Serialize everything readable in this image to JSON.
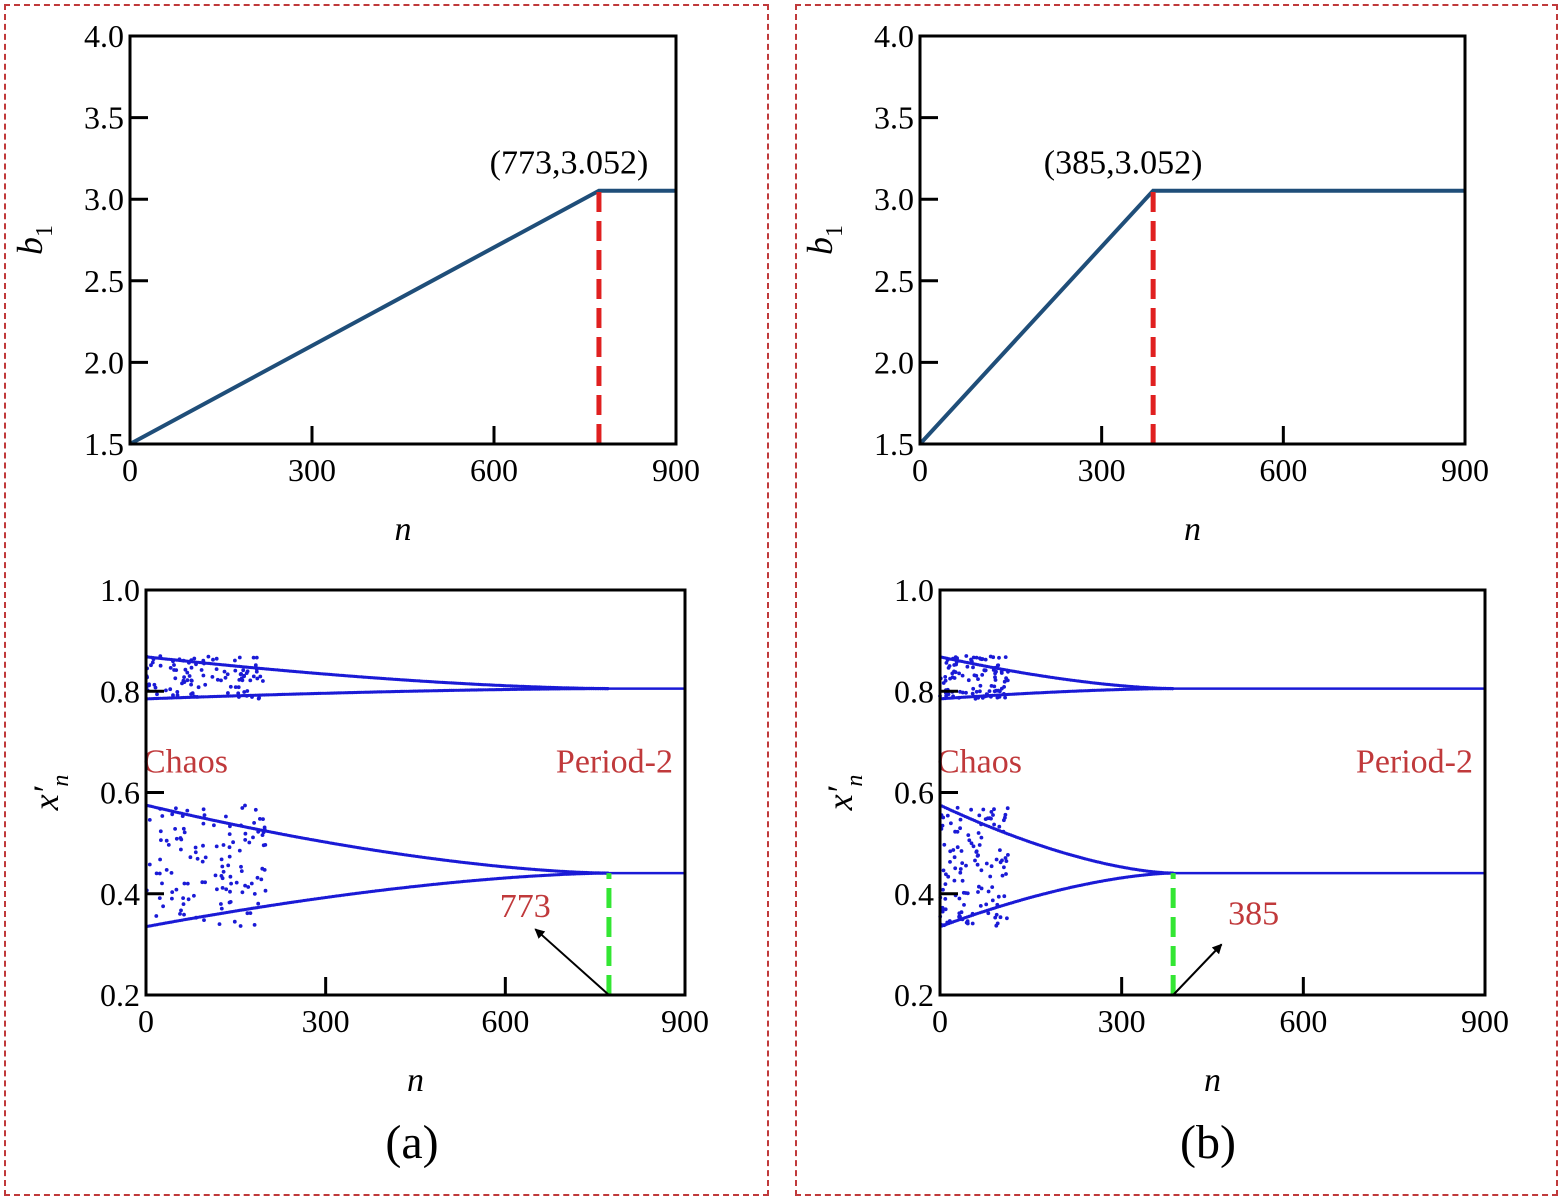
{
  "colors": {
    "line": "#1f4e79",
    "dots": "#1a1ad6",
    "red": "#e02020",
    "green": "#33e633",
    "label_red": "#c0393b",
    "frame": "#c0393b"
  },
  "chart_data": [
    {
      "id": "a-top",
      "type": "line",
      "panel": "(a)",
      "xlabel": "n",
      "ylabel": "b",
      "ylabel_sub": "1",
      "xlim": [
        0,
        900
      ],
      "ylim": [
        1.5,
        4.0
      ],
      "xticks": [
        "0",
        "300",
        "600",
        "900"
      ],
      "yticks": [
        "1.5",
        "2.0",
        "2.5",
        "3.0",
        "3.5",
        "4.0"
      ],
      "series": [
        {
          "name": "b1",
          "x": [
            0,
            773,
            900
          ],
          "y": [
            1.5,
            3.052,
            3.052
          ]
        }
      ],
      "vline": {
        "x": 773,
        "y0": 1.5,
        "y1": 3.052
      },
      "annotation": "(773,3.052)"
    },
    {
      "id": "b-top",
      "type": "line",
      "panel": "(b)",
      "xlabel": "n",
      "ylabel": "b",
      "ylabel_sub": "1",
      "xlim": [
        0,
        900
      ],
      "ylim": [
        1.5,
        4.0
      ],
      "xticks": [
        "0",
        "300",
        "600",
        "900"
      ],
      "yticks": [
        "1.5",
        "2.0",
        "2.5",
        "3.0",
        "3.5",
        "4.0"
      ],
      "series": [
        {
          "name": "b1",
          "x": [
            0,
            385,
            900
          ],
          "y": [
            1.5,
            3.052,
            3.052
          ]
        }
      ],
      "vline": {
        "x": 385,
        "y0": 1.5,
        "y1": 3.052
      },
      "annotation": "(385,3.052)"
    },
    {
      "id": "a-bot",
      "type": "scatter",
      "panel": "(a)",
      "xlabel": "n",
      "ylabel": "x′",
      "ylabel_sub": "n",
      "xlim": [
        0,
        900
      ],
      "ylim": [
        0.2,
        1.0
      ],
      "xticks": [
        "0",
        "300",
        "600",
        "900"
      ],
      "yticks": [
        "0.2",
        "0.4",
        "0.6",
        "0.8",
        "1.0"
      ],
      "transition_n": 773,
      "period2_levels": [
        0.8053,
        0.4408
      ],
      "branches": [
        {
          "start": 0.868,
          "end": 0.8053
        },
        {
          "start": 0.785,
          "end": 0.8053
        },
        {
          "start": 0.575,
          "end": 0.4408
        },
        {
          "start": 0.335,
          "end": 0.4408
        }
      ],
      "chaos_label": "Chaos",
      "period_label": "Period-2",
      "marker_label": "773",
      "arrow": {
        "from": [
          773,
          0.2
        ],
        "to": [
          650,
          0.33
        ]
      }
    },
    {
      "id": "b-bot",
      "type": "scatter",
      "panel": "(b)",
      "xlabel": "n",
      "ylabel": "x′",
      "ylabel_sub": "n",
      "xlim": [
        0,
        900
      ],
      "ylim": [
        0.2,
        1.0
      ],
      "xticks": [
        "0",
        "300",
        "600",
        "900"
      ],
      "yticks": [
        "0.2",
        "0.4",
        "0.6",
        "0.8",
        "1.0"
      ],
      "transition_n": 385,
      "period2_levels": [
        0.8053,
        0.4408
      ],
      "branches": [
        {
          "start": 0.868,
          "end": 0.8053
        },
        {
          "start": 0.785,
          "end": 0.8053
        },
        {
          "start": 0.575,
          "end": 0.4408
        },
        {
          "start": 0.335,
          "end": 0.4408
        }
      ],
      "chaos_label": "Chaos",
      "period_label": "Period-2",
      "marker_label": "385",
      "arrow": {
        "from": [
          385,
          0.2
        ],
        "to": [
          465,
          0.3
        ]
      }
    }
  ],
  "captions": {
    "a": "(a)",
    "b": "(b)"
  }
}
